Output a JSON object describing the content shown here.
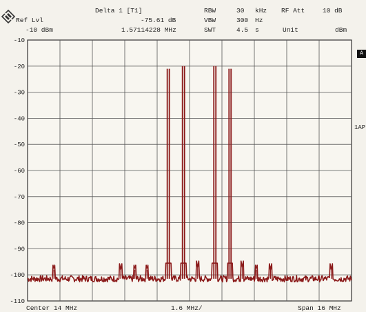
{
  "header": {
    "ref_lvl_label": "Ref Lvl",
    "ref_lvl_value": "-10 dBm",
    "marker_label": "Delta 1 [T1]",
    "marker_level": "-75.61 dB",
    "marker_freq": "1.57114228 MHz",
    "rbw_label": "RBW",
    "rbw_value": "30",
    "rbw_unit": "kHz",
    "vbw_label": "VBW",
    "vbw_value": "300",
    "vbw_unit": "Hz",
    "swt_label": "SWT",
    "swt_value": "4.5",
    "swt_unit": "s",
    "rf_att_label": "RF Att",
    "rf_att_value": "10 dB",
    "unit_label": "Unit",
    "unit_value": "dBm"
  },
  "side": {
    "marker_box": "A",
    "label": "1AP"
  },
  "footer": {
    "center": "Center 14 MHz",
    "div": "1.6 MHz/",
    "span": "Span 16 MHz"
  },
  "colors": {
    "trace": "#8b1a1a",
    "grid": "#555555"
  },
  "chart_data": {
    "type": "line",
    "title": "",
    "xlabel": "",
    "ylabel": "",
    "xlim": [
      6,
      22
    ],
    "ylim": [
      -110,
      -10
    ],
    "x_unit": "MHz",
    "y_unit": "dBm",
    "y_ticks": [
      "-10",
      "-20",
      "-30",
      "-40",
      "-50",
      "-60",
      "-70",
      "-80",
      "-90",
      "-100",
      "-110"
    ],
    "grid": true,
    "noise_floor": -101.5,
    "series": [
      {
        "peaks": [
          {
            "x": 12.95,
            "y": -21
          },
          {
            "x": 13.7,
            "y": -20
          },
          {
            "x": 15.25,
            "y": -20
          },
          {
            "x": 16.0,
            "y": -21
          }
        ],
        "spurs": [
          {
            "x": 7.3,
            "y": -98
          },
          {
            "x": 10.6,
            "y": -98
          },
          {
            "x": 11.3,
            "y": -98
          },
          {
            "x": 11.9,
            "y": -98
          },
          {
            "x": 14.4,
            "y": -97
          },
          {
            "x": 16.6,
            "y": -97
          },
          {
            "x": 17.3,
            "y": -98
          },
          {
            "x": 18.0,
            "y": -98
          },
          {
            "x": 21.0,
            "y": -98
          }
        ]
      }
    ]
  }
}
